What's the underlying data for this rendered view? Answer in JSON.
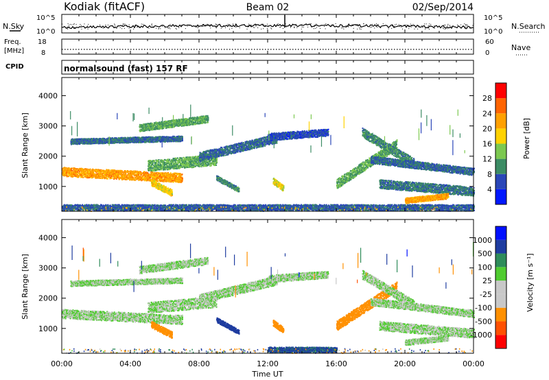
{
  "header": {
    "station": "Kodiak (fitACF)",
    "beam": "Beam 02",
    "date": "02/Sep/2014"
  },
  "top_panels": {
    "nsky_label": "N.Sky",
    "nsearch_label": "N.Search",
    "noise_ticks": [
      "10^5",
      "10^0"
    ],
    "freq_label_1": "Freq.",
    "freq_label_2": "[MHz]",
    "freq_ticks": [
      "18",
      "8"
    ],
    "nave_label": "Nave",
    "nave_ticks": [
      "60",
      "0"
    ],
    "cpid_label": "CPID",
    "cpid_text": "normalsound (fast) 157 RF"
  },
  "colors": {
    "power_scale": [
      "#0018ff",
      "#2a46b8",
      "#3c8c64",
      "#7cc850",
      "#ffd200",
      "#ffa000",
      "#ff6400",
      "#ff0000"
    ],
    "velocity_scale": [
      "#ff0000",
      "#ff5000",
      "#ff9000",
      "#c8c8c8",
      "#c8c8c8",
      "#50cc30",
      "#2e8c5a",
      "#1e3ca0",
      "#0010ff"
    ]
  },
  "chart_data": [
    {
      "type": "heatmap",
      "title": "Power",
      "ylabel": "Slant Range [km]",
      "xlabel": "",
      "x_ticks": [
        "00:00",
        "04:00",
        "08:00",
        "12:00",
        "16:00",
        "20:00",
        "00:00"
      ],
      "x_range_hours": [
        0,
        24
      ],
      "y_ticks": [
        1000,
        2000,
        3000,
        4000
      ],
      "y_range": [
        180,
        4600
      ],
      "colorbar_label": "Power [dB]",
      "colorbar_ticks": [
        4,
        8,
        12,
        16,
        20,
        24,
        28
      ],
      "colorbar_range": [
        0,
        32
      ],
      "echo_bands": [
        {
          "t0": 0.0,
          "t1": 7.0,
          "r0": 1500,
          "r1": 1300,
          "w": 150,
          "v": 22
        },
        {
          "t0": 5.0,
          "t1": 9.0,
          "r0": 1700,
          "r1": 1900,
          "w": 180,
          "v": 12
        },
        {
          "t0": 8.0,
          "t1": 12.5,
          "r0": 2000,
          "r1": 2600,
          "w": 150,
          "v": 8
        },
        {
          "t0": 12.0,
          "t1": 15.5,
          "r0": 2650,
          "r1": 2800,
          "w": 120,
          "v": 6
        },
        {
          "t0": 0.5,
          "t1": 7.0,
          "r0": 2500,
          "r1": 2600,
          "w": 90,
          "v": 8
        },
        {
          "t0": 4.5,
          "t1": 8.5,
          "r0": 2950,
          "r1": 3250,
          "w": 120,
          "v": 12
        },
        {
          "t0": 5.2,
          "t1": 6.4,
          "r0": 1150,
          "r1": 800,
          "w": 110,
          "v": 18
        },
        {
          "t0": 9.0,
          "t1": 10.3,
          "r0": 1300,
          "r1": 900,
          "w": 80,
          "v": 10
        },
        {
          "t0": 12.3,
          "t1": 12.9,
          "r0": 1200,
          "r1": 950,
          "w": 100,
          "v": 18
        },
        {
          "t0": 16.0,
          "t1": 19.5,
          "r0": 1100,
          "r1": 2400,
          "w": 160,
          "v": 12
        },
        {
          "t0": 17.5,
          "t1": 20.5,
          "r0": 2800,
          "r1": 1800,
          "w": 150,
          "v": 10
        },
        {
          "t0": 18.0,
          "t1": 24.0,
          "r0": 1900,
          "r1": 1500,
          "w": 120,
          "v": 8
        },
        {
          "t0": 18.5,
          "t1": 24.0,
          "r0": 1100,
          "r1": 850,
          "w": 150,
          "v": 9
        },
        {
          "t0": 20.0,
          "t1": 22.5,
          "r0": 550,
          "r1": 700,
          "w": 90,
          "v": 22
        },
        {
          "t0": 0.0,
          "t1": 24.0,
          "r0": 300,
          "r1": 300,
          "w": 120,
          "v": 7
        }
      ]
    },
    {
      "type": "heatmap",
      "title": "Velocity",
      "ylabel": "Slant Range [km]",
      "xlabel": "Time UT",
      "x_ticks": [
        "00:00",
        "04:00",
        "08:00",
        "12:00",
        "16:00",
        "20:00",
        "00:00"
      ],
      "x_range_hours": [
        0,
        24
      ],
      "y_ticks": [
        1000,
        2000,
        3000,
        4000
      ],
      "y_range": [
        180,
        4600
      ],
      "colorbar_label": "Velocity [m s⁻¹]",
      "colorbar_ticks": [
        1000,
        500,
        100,
        25,
        -25,
        -100,
        -500,
        -1000
      ],
      "echo_bands": [
        {
          "t0": 0.0,
          "t1": 7.0,
          "r0": 1500,
          "r1": 1300,
          "w": 150,
          "v": 0
        },
        {
          "t0": 5.0,
          "t1": 9.0,
          "r0": 1700,
          "r1": 1900,
          "w": 180,
          "v": 0
        },
        {
          "t0": 8.0,
          "t1": 12.5,
          "r0": 2000,
          "r1": 2600,
          "w": 150,
          "v": 0
        },
        {
          "t0": 12.0,
          "t1": 15.5,
          "r0": 2650,
          "r1": 2800,
          "w": 120,
          "v": 0
        },
        {
          "t0": 0.5,
          "t1": 7.0,
          "r0": 2500,
          "r1": 2600,
          "w": 90,
          "v": 0
        },
        {
          "t0": 4.5,
          "t1": 8.5,
          "r0": 2950,
          "r1": 3250,
          "w": 120,
          "v": 0
        },
        {
          "t0": 5.2,
          "t1": 6.4,
          "r0": 1150,
          "r1": 800,
          "w": 110,
          "v": -300
        },
        {
          "t0": 9.0,
          "t1": 10.3,
          "r0": 1300,
          "r1": 900,
          "w": 80,
          "v": 200
        },
        {
          "t0": 12.3,
          "t1": 12.9,
          "r0": 1200,
          "r1": 950,
          "w": 100,
          "v": -300
        },
        {
          "t0": 16.0,
          "t1": 19.5,
          "r0": 1100,
          "r1": 2400,
          "w": 160,
          "v": -250
        },
        {
          "t0": 17.5,
          "t1": 20.5,
          "r0": 2800,
          "r1": 1800,
          "w": 150,
          "v": 0
        },
        {
          "t0": 18.0,
          "t1": 24.0,
          "r0": 1900,
          "r1": 1500,
          "w": 120,
          "v": 0
        },
        {
          "t0": 18.5,
          "t1": 24.0,
          "r0": 1100,
          "r1": 850,
          "w": 150,
          "v": 0
        },
        {
          "t0": 20.0,
          "t1": 22.5,
          "r0": 550,
          "r1": 700,
          "w": 90,
          "v": 0
        },
        {
          "t0": 12.0,
          "t1": 16.0,
          "r0": 300,
          "r1": 300,
          "w": 100,
          "v": 120
        }
      ]
    }
  ]
}
